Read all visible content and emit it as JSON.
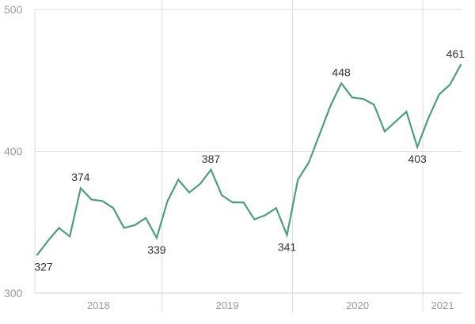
{
  "chart_data": {
    "type": "line",
    "title": "",
    "xlabel": "",
    "ylabel": "",
    "ylim": [
      300,
      500
    ],
    "y_ticks": [
      300,
      400,
      500
    ],
    "x_ticks": [
      "2018",
      "2019",
      "2020",
      "2021"
    ],
    "year_boundaries": [
      "2018-07",
      "2019-07",
      "2020-07"
    ],
    "grid": true,
    "legend": "none",
    "line_color": "#4e9e7c",
    "grid_color": "#dddddd",
    "x": [
      "2017-07",
      "2017-08",
      "2017-09",
      "2017-10",
      "2017-11",
      "2017-12",
      "2018-01",
      "2018-02",
      "2018-03",
      "2018-04",
      "2018-05",
      "2018-06",
      "2018-07",
      "2018-08",
      "2018-09",
      "2018-10",
      "2018-11",
      "2018-12",
      "2019-01",
      "2019-02",
      "2019-03",
      "2019-04",
      "2019-05",
      "2019-06",
      "2019-07",
      "2019-08",
      "2019-09",
      "2019-10",
      "2019-11",
      "2019-12",
      "2020-01",
      "2020-02",
      "2020-03",
      "2020-04",
      "2020-05",
      "2020-06",
      "2020-07",
      "2020-08",
      "2020-09",
      "2020-10"
    ],
    "series": [
      {
        "values": [
          327,
          337,
          346,
          340,
          374,
          366,
          365,
          360,
          346,
          348,
          353,
          339,
          365,
          380,
          371,
          377,
          387,
          369,
          364,
          364,
          352,
          355,
          360,
          341,
          380,
          392,
          412,
          432,
          448,
          438,
          437,
          433,
          414,
          421,
          428,
          403,
          423,
          440,
          447,
          461
        ]
      }
    ],
    "data_labels": [
      {
        "x": "2017-07",
        "value": 327,
        "text": "327"
      },
      {
        "x": "2017-11",
        "value": 374,
        "text": "374"
      },
      {
        "x": "2018-06",
        "value": 339,
        "text": "339"
      },
      {
        "x": "2018-11",
        "value": 387,
        "text": "387"
      },
      {
        "x": "2019-06",
        "value": 341,
        "text": "341"
      },
      {
        "x": "2019-11",
        "value": 448,
        "text": "448"
      },
      {
        "x": "2020-06",
        "value": 403,
        "text": "403"
      },
      {
        "x": "2020-10",
        "value": 461,
        "text": "461"
      }
    ]
  }
}
